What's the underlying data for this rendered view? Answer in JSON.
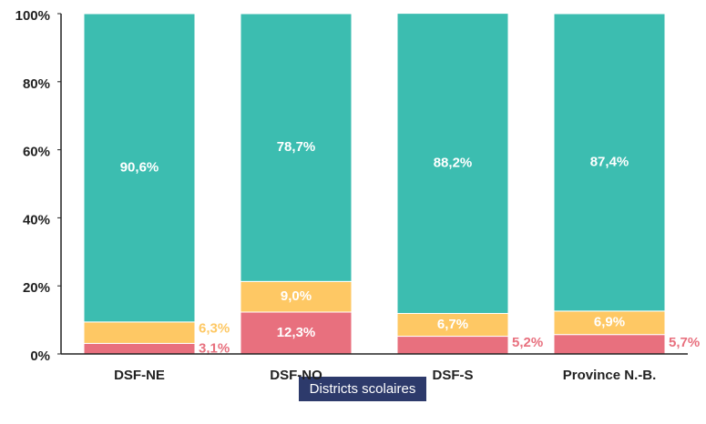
{
  "chart_data": {
    "type": "stacked_bar",
    "categories": [
      "DSF-NE",
      "DSF-NO",
      "DSF-S",
      "Province N.-B."
    ],
    "series": [
      {
        "color": "#e8707e",
        "values": [
          3.1,
          12.3,
          5.2,
          5.7
        ],
        "value_labels": [
          "3,1%",
          "12,3%",
          "5,2%",
          "5,7%"
        ]
      },
      {
        "color": "#fec864",
        "values": [
          6.3,
          9.0,
          6.7,
          6.9
        ],
        "value_labels": [
          "6,3%",
          "9,0%",
          "6,7%",
          "6,9%"
        ]
      },
      {
        "color": "#3cbdb0",
        "values": [
          90.6,
          78.7,
          88.2,
          87.4
        ],
        "value_labels": [
          "90,6%",
          "78,7%",
          "88,2%",
          "87,4%"
        ]
      }
    ],
    "x_label": "Districts scolaires",
    "ylim": [
      0,
      100
    ],
    "yticks": [
      {
        "value": 0,
        "label": "0%"
      },
      {
        "value": 20,
        "label": "20%"
      },
      {
        "value": 40,
        "label": "40%"
      },
      {
        "value": 60,
        "label": "60%"
      },
      {
        "value": 80,
        "label": "80%"
      },
      {
        "value": 100,
        "label": "100%"
      }
    ]
  }
}
